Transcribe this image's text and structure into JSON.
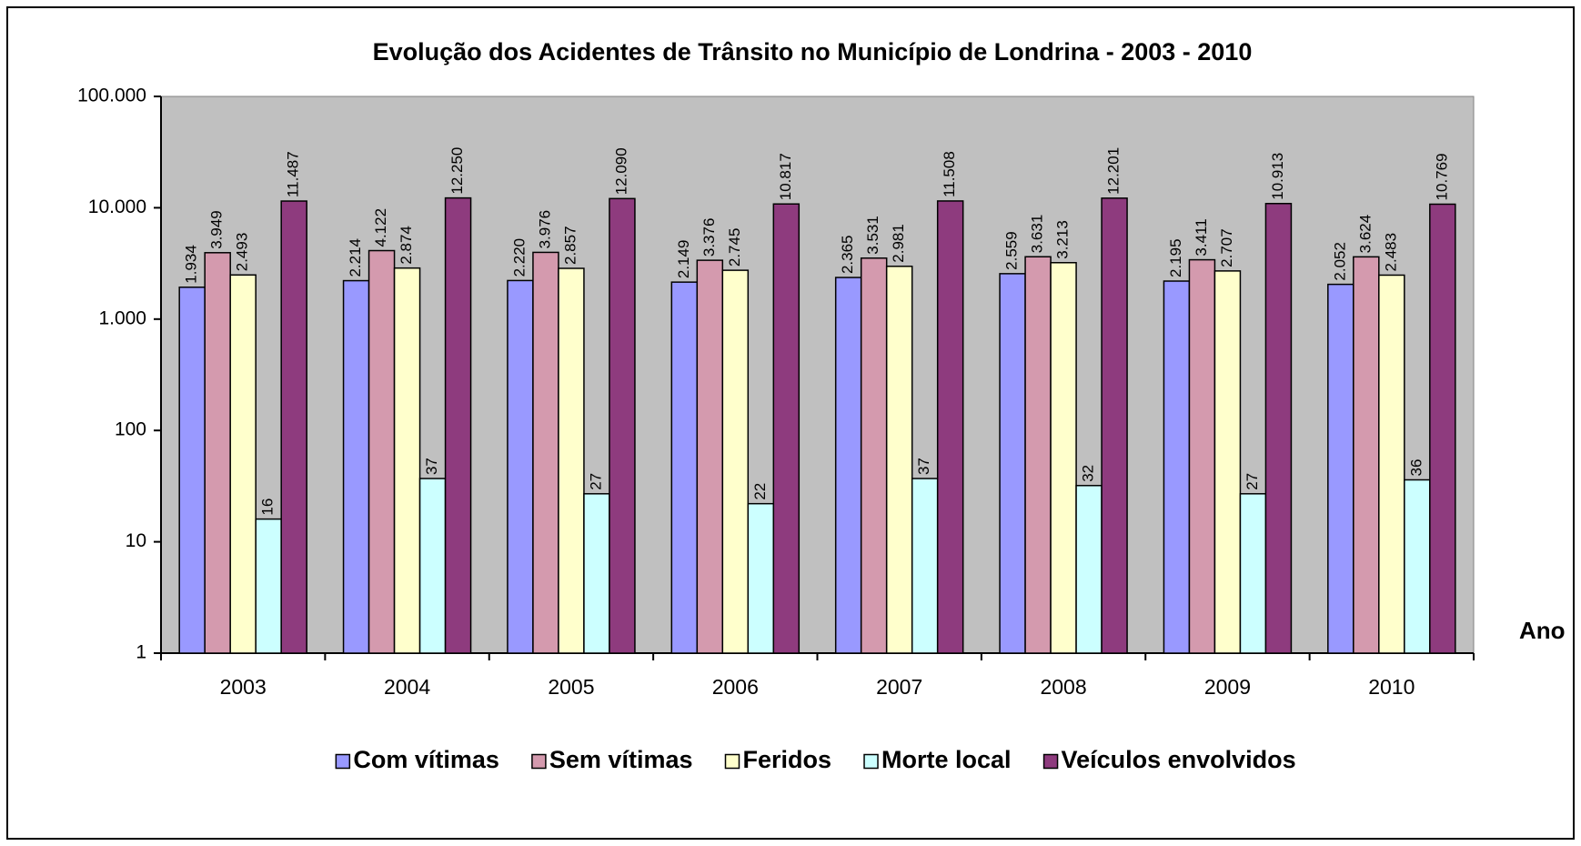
{
  "chart_data": {
    "type": "bar",
    "title": "Evolução dos Acidentes de Trânsito no Município de Londrina - 2003 - 2010",
    "x_label": "Ano",
    "categories": [
      "2003",
      "2004",
      "2005",
      "2006",
      "2007",
      "2008",
      "2009",
      "2010"
    ],
    "series": [
      {
        "name": "Com vítimas",
        "color": "#9999ff",
        "values": [
          1934,
          2214,
          2220,
          2149,
          2365,
          2559,
          2195,
          2052
        ],
        "value_labels": [
          "1.934",
          "2.214",
          "2.220",
          "2.149",
          "2.365",
          "2.559",
          "2.195",
          "2.052"
        ]
      },
      {
        "name": "Sem vítimas",
        "color": "#d49aae",
        "values": [
          3949,
          4122,
          3976,
          3376,
          3531,
          3631,
          3411,
          3624
        ],
        "value_labels": [
          "3.949",
          "4.122",
          "3.976",
          "3.376",
          "3.531",
          "3.631",
          "3.411",
          "3.624"
        ]
      },
      {
        "name": "Feridos",
        "color": "#ffffcc",
        "values": [
          2493,
          2874,
          2857,
          2745,
          2981,
          3213,
          2707,
          2483
        ],
        "value_labels": [
          "2.493",
          "2.874",
          "2.857",
          "2.745",
          "2.981",
          "3.213",
          "2.707",
          "2.483"
        ]
      },
      {
        "name": "Morte local",
        "color": "#ccffff",
        "values": [
          16,
          37,
          27,
          22,
          37,
          32,
          27,
          36
        ]
      },
      {
        "name": "Veículos envolvidos",
        "color": "#8e3b7e",
        "values": [
          11487,
          12250,
          12090,
          10817,
          11508,
          12201,
          10913,
          10769
        ],
        "value_labels": [
          "11.487",
          "12.250",
          "12.090",
          "10.817",
          "11.508",
          "12.201",
          "10.913",
          "10.769"
        ]
      }
    ],
    "log_scale": true,
    "ylim": [
      1,
      100000
    ],
    "yticks": [
      1,
      10,
      100,
      {
        "value": 1000,
        "label": "1.000"
      },
      {
        "value": 10000,
        "label": "10.000"
      },
      {
        "value": 100000,
        "label": "100.000"
      }
    ],
    "grid": false,
    "legend": "bottom"
  }
}
